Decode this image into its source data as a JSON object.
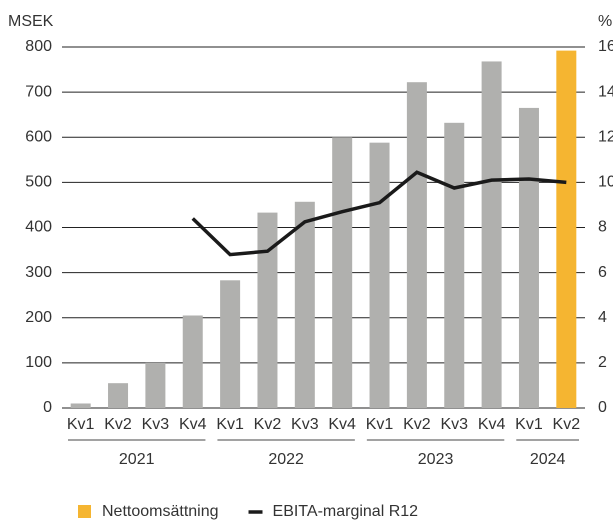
{
  "chart_data": {
    "type": "bar-line",
    "ylabel": "MSEK",
    "y2label": "%",
    "categories": [
      "Kv1",
      "Kv2",
      "Kv3",
      "Kv4",
      "Kv1",
      "Kv2",
      "Kv3",
      "Kv4",
      "Kv1",
      "Kv2",
      "Kv3",
      "Kv4",
      "Kv1",
      "Kv2"
    ],
    "groups": [
      "2021",
      "2022",
      "2023",
      "2024"
    ],
    "group_sizes": [
      4,
      4,
      4,
      2
    ],
    "series": [
      {
        "name": "Nettoomsättning",
        "type": "bar",
        "color": "#f5b531",
        "colors": [
          "#b0b0ae",
          "#b0b0ae",
          "#b0b0ae",
          "#b0b0ae",
          "#b0b0ae",
          "#b0b0ae",
          "#b0b0ae",
          "#b0b0ae",
          "#b0b0ae",
          "#b0b0ae",
          "#b0b0ae",
          "#b0b0ae",
          "#b0b0ae",
          "#f5b531"
        ],
        "values": [
          10,
          55,
          100,
          205,
          283,
          433,
          457,
          600,
          588,
          722,
          632,
          768,
          665,
          792
        ]
      },
      {
        "name": "EBITA-marginal R12",
        "type": "line",
        "axis": "y2",
        "color": "#1a1a1a",
        "values": [
          null,
          null,
          null,
          8.4,
          6.8,
          6.95,
          8.25,
          8.7,
          9.1,
          10.45,
          9.75,
          10.1,
          10.15,
          10.0
        ]
      }
    ],
    "ylim": [
      0,
      800
    ],
    "yticks": [
      0,
      100,
      200,
      300,
      400,
      500,
      600,
      700,
      800
    ],
    "y2lim": [
      0,
      16
    ],
    "y2ticks": [
      0,
      2,
      4,
      6,
      8,
      10,
      12,
      14,
      16
    ],
    "grid": true
  }
}
